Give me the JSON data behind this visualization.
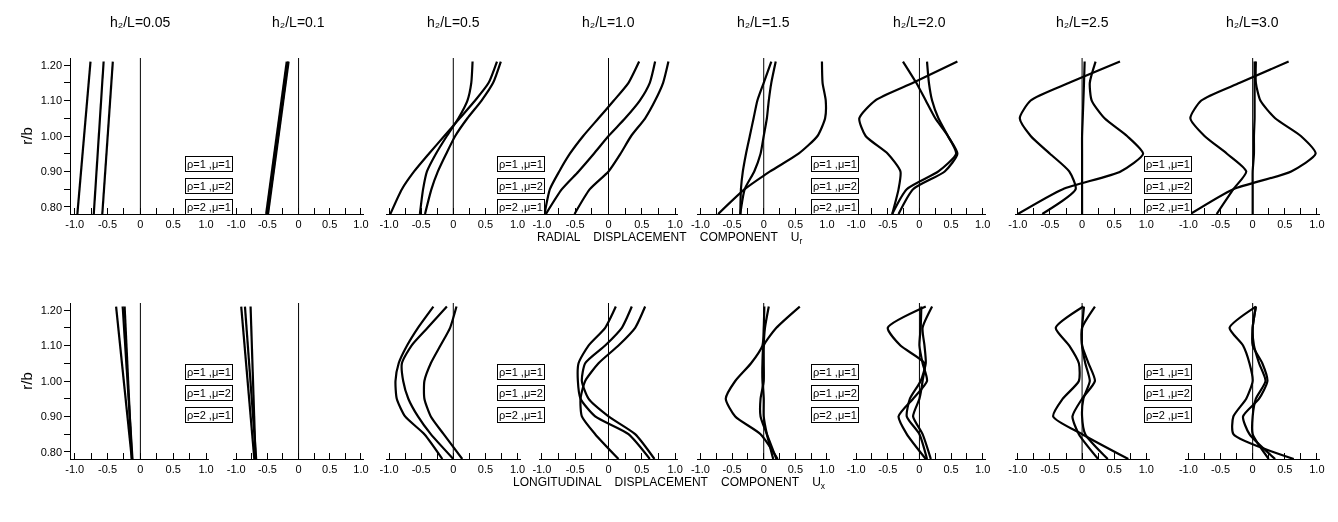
{
  "chart_data": [
    {
      "type": "line",
      "title": "h₂/L=0.05",
      "ylabel": "r/b",
      "xlim": [
        -1.05,
        1.05
      ],
      "ylim": [
        0.78,
        1.22
      ],
      "xticks": [
        {
          "value": -1,
          "label": "-1.0"
        },
        {
          "value": -0.75,
          "label": null
        },
        {
          "value": -0.5,
          "label": "-0.5"
        },
        {
          "value": -0.25,
          "label": null
        },
        0,
        {
          "value": 0.25,
          "label": null
        },
        {
          "value": 0.5,
          "label": "0.5"
        },
        {
          "value": 0.75,
          "label": null
        },
        {
          "value": 1,
          "label": "1.0"
        }
      ],
      "yticks": [
        {
          "value": 0.8,
          "label": "0.80"
        },
        {
          "value": 0.85,
          "label": null
        },
        {
          "value": 0.9,
          "label": "0.90"
        },
        {
          "value": 0.95,
          "label": null
        },
        {
          "value": 1.0,
          "label": "1.00"
        },
        {
          "value": 1.05,
          "label": null
        },
        {
          "value": 1.1,
          "label": "1.10"
        },
        {
          "value": 1.15,
          "label": null
        },
        {
          "value": 1.2,
          "label": "1.20"
        }
      ],
      "ref_lines": [
        {
          "axis": "x",
          "value": 0,
          "color": "#000000"
        }
      ],
      "annotations": [
        "ρ=1 ,μ=1",
        "ρ=1 ,μ=2",
        "ρ=2 ,μ=1"
      ],
      "series": [
        {
          "color": "#000000",
          "x": [
            -0.96,
            -0.76
          ],
          "values": [
            0.78,
            1.21
          ]
        },
        {
          "color": "#000000",
          "x": [
            -0.71,
            -0.56
          ],
          "values": [
            0.78,
            1.21
          ]
        },
        {
          "color": "#000000",
          "x": [
            -0.58,
            -0.42
          ],
          "values": [
            0.78,
            1.21
          ]
        }
      ]
    },
    {
      "type": "line",
      "title": "h₂/L=0.1",
      "tick_labels": "x",
      "xlim": [
        -1.05,
        1.05
      ],
      "ylim": [
        0.78,
        1.22
      ],
      "xticks": [
        {
          "value": -1,
          "label": "-1.0"
        },
        {
          "value": -0.75,
          "label": null
        },
        {
          "value": -0.5,
          "label": "-0.5"
        },
        {
          "value": -0.25,
          "label": null
        },
        0,
        {
          "value": 0.25,
          "label": null
        },
        {
          "value": 0.5,
          "label": "0.5"
        },
        {
          "value": 0.75,
          "label": null
        },
        {
          "value": 1,
          "label": "1.0"
        }
      ],
      "ref_lines": [
        {
          "axis": "x",
          "value": 0,
          "color": "#000000"
        }
      ],
      "annotations": [
        "RADIAL    DISPLACEMENT    COMPONENT    U$_{r}$"
      ],
      "series": [
        {
          "color": "#000000",
          "x": [
            -0.52,
            -0.19
          ],
          "values": [
            0.78,
            1.21
          ]
        },
        {
          "color": "#000000",
          "x": [
            -0.5,
            -0.17
          ],
          "values": [
            0.78,
            1.21
          ]
        },
        {
          "color": "#000000",
          "x": [
            -0.49,
            -0.16
          ],
          "values": [
            0.78,
            1.21
          ]
        }
      ]
    },
    {
      "type": "line",
      "title": "h₂/L=0.5",
      "tick_labels": "x",
      "xlim": [
        -1.05,
        1.05
      ],
      "ylim": [
        0.78,
        1.22
      ],
      "xticks": [
        {
          "value": -1,
          "label": "-1.0"
        },
        {
          "value": -0.75,
          "label": null
        },
        {
          "value": -0.5,
          "label": "-0.5"
        },
        {
          "value": -0.25,
          "label": null
        },
        0,
        {
          "value": 0.25,
          "label": null
        },
        {
          "value": 0.5,
          "label": "0.5"
        },
        {
          "value": 0.75,
          "label": null
        },
        {
          "value": 1,
          "label": "1.0"
        }
      ],
      "ref_lines": [
        {
          "axis": "x",
          "value": 0,
          "color": "#000000"
        }
      ],
      "annotations": [
        "ρ=1 ,μ=1",
        "ρ=1 ,μ=2",
        "ρ=2 ,μ=1"
      ],
      "series": [
        {
          "color": "#000000",
          "x": [
            -0.98,
            -0.8,
            -0.61,
            -0.38,
            -0.14,
            0.1,
            0.34,
            0.55,
            0.68
          ],
          "values": [
            0.78,
            0.85,
            0.9,
            0.95,
            1.0,
            1.05,
            1.1,
            1.15,
            1.21
          ]
        },
        {
          "color": "#000000",
          "x": [
            -0.52,
            -0.47,
            -0.41,
            -0.27,
            -0.1,
            0.08,
            0.22,
            0.28,
            0.3
          ],
          "values": [
            0.78,
            0.85,
            0.9,
            0.95,
            1.0,
            1.05,
            1.1,
            1.15,
            1.21
          ]
        },
        {
          "color": "#000000",
          "x": [
            -0.44,
            -0.34,
            -0.24,
            -0.11,
            0.03,
            0.22,
            0.44,
            0.62,
            0.74
          ],
          "values": [
            0.78,
            0.85,
            0.9,
            0.95,
            1.0,
            1.05,
            1.1,
            1.15,
            1.21
          ]
        }
      ]
    },
    {
      "type": "line",
      "title": "h₂/L=1.0",
      "tick_labels": "x",
      "xlim": [
        -1.05,
        1.05
      ],
      "ylim": [
        0.78,
        1.22
      ],
      "xticks": [
        {
          "value": -1,
          "label": "-1.0"
        },
        {
          "value": -0.75,
          "label": null
        },
        {
          "value": -0.5,
          "label": "-0.5"
        },
        {
          "value": -0.25,
          "label": null
        },
        0,
        {
          "value": 0.25,
          "label": null
        },
        {
          "value": 0.5,
          "label": "0.5"
        },
        {
          "value": 0.75,
          "label": null
        },
        {
          "value": 1,
          "label": "1.0"
        }
      ],
      "ref_lines": [
        {
          "axis": "x",
          "value": 0,
          "color": "#000000"
        }
      ],
      "series": [
        {
          "color": "#000000",
          "x": [
            -0.96,
            -0.88,
            -0.74,
            -0.58,
            -0.38,
            -0.15,
            0.08,
            0.3,
            0.46
          ],
          "values": [
            0.78,
            0.85,
            0.9,
            0.95,
            1.0,
            1.05,
            1.1,
            1.15,
            1.21
          ]
        },
        {
          "color": "#000000",
          "x": [
            -0.94,
            -0.7,
            -0.45,
            -0.22,
            0.0,
            0.25,
            0.47,
            0.62,
            0.7
          ],
          "values": [
            0.78,
            0.85,
            0.9,
            0.95,
            1.0,
            1.05,
            1.1,
            1.15,
            1.21
          ]
        },
        {
          "color": "#000000",
          "x": [
            -0.51,
            -0.28,
            0.0,
            0.18,
            0.34,
            0.55,
            0.7,
            0.82,
            0.9
          ],
          "values": [
            0.78,
            0.85,
            0.9,
            0.95,
            1.0,
            1.05,
            1.1,
            1.15,
            1.21
          ]
        }
      ]
    },
    {
      "type": "line",
      "title": "h₂/L=1.5",
      "tick_labels": "x",
      "xlim": [
        -1.05,
        1.05
      ],
      "ylim": [
        0.78,
        1.22
      ],
      "xticks": [
        {
          "value": -1,
          "label": "-1.0"
        },
        {
          "value": -0.75,
          "label": null
        },
        {
          "value": -0.5,
          "label": "-0.5"
        },
        {
          "value": -0.25,
          "label": null
        },
        0,
        {
          "value": 0.25,
          "label": null
        },
        {
          "value": 0.5,
          "label": "0.5"
        },
        {
          "value": 0.75,
          "label": null
        },
        {
          "value": 1,
          "label": "1.0"
        }
      ],
      "ref_lines": [
        {
          "axis": "x",
          "value": 0,
          "color": "#000000"
        }
      ],
      "annotations": [
        "ρ=1 ,μ=1",
        "ρ=1 ,μ=2",
        "ρ=2 ,μ=1"
      ],
      "series": [
        {
          "color": "#000000",
          "x": [
            -0.37,
            -0.3,
            -0.15,
            -0.05,
            0.0,
            0.05,
            0.08,
            0.12,
            0.19
          ],
          "values": [
            0.78,
            0.85,
            0.9,
            0.95,
            1.0,
            1.05,
            1.1,
            1.15,
            1.21
          ]
        },
        {
          "color": "#000000",
          "x": [
            -0.37,
            -0.36,
            -0.33,
            -0.28,
            -0.22,
            -0.16,
            -0.1,
            0.0,
            0.12
          ],
          "values": [
            0.78,
            0.85,
            0.9,
            0.95,
            1.0,
            1.05,
            1.1,
            1.15,
            1.21
          ]
        },
        {
          "color": "#000000",
          "x": [
            -0.72,
            -0.3,
            0.1,
            0.55,
            0.85,
            0.97,
            0.98,
            0.93,
            0.92
          ],
          "values": [
            0.78,
            0.85,
            0.9,
            0.95,
            1.0,
            1.05,
            1.1,
            1.15,
            1.21
          ]
        }
      ]
    },
    {
      "type": "line",
      "title": "h₂/L=2.0",
      "tick_labels": "x",
      "xlim": [
        -1.05,
        1.05
      ],
      "ylim": [
        0.78,
        1.22
      ],
      "xticks": [
        {
          "value": -1,
          "label": "-1.0"
        },
        {
          "value": -0.75,
          "label": null
        },
        {
          "value": -0.5,
          "label": "-0.5"
        },
        {
          "value": -0.25,
          "label": null
        },
        0,
        {
          "value": 0.25,
          "label": null
        },
        {
          "value": 0.5,
          "label": "0.5"
        },
        {
          "value": 0.75,
          "label": null
        },
        {
          "value": 1,
          "label": "1.0"
        }
      ],
      "ref_lines": [
        {
          "axis": "x",
          "value": 0,
          "color": "#000000"
        }
      ],
      "series": [
        {
          "color": "#000000",
          "x": [
            -0.43,
            -0.33,
            -0.3,
            -0.5,
            -0.85,
            -0.95,
            -0.7,
            -0.1,
            0.6
          ],
          "values": [
            0.78,
            0.85,
            0.9,
            0.95,
            1.0,
            1.05,
            1.1,
            1.15,
            1.21
          ]
        },
        {
          "color": "#000000",
          "x": [
            -0.43,
            -0.2,
            0.3,
            0.58,
            0.45,
            0.25,
            0.1,
            -0.05,
            -0.26
          ],
          "values": [
            0.78,
            0.85,
            0.9,
            0.95,
            1.0,
            1.05,
            1.1,
            1.15,
            1.21
          ]
        },
        {
          "color": "#000000",
          "x": [
            -0.33,
            -0.1,
            0.4,
            0.6,
            0.45,
            0.3,
            0.2,
            0.15,
            0.12
          ],
          "values": [
            0.78,
            0.85,
            0.9,
            0.95,
            1.0,
            1.05,
            1.1,
            1.15,
            1.21
          ]
        }
      ]
    },
    {
      "type": "line",
      "title": "h₂/L=2.5",
      "tick_labels": "x",
      "xlim": [
        -1.05,
        1.05
      ],
      "ylim": [
        0.78,
        1.22
      ],
      "xticks": [
        {
          "value": -1,
          "label": "-1.0"
        },
        {
          "value": -0.75,
          "label": null
        },
        {
          "value": -0.5,
          "label": "-0.5"
        },
        {
          "value": -0.25,
          "label": null
        },
        0,
        {
          "value": 0.25,
          "label": null
        },
        {
          "value": 0.5,
          "label": "0.5"
        },
        {
          "value": 0.75,
          "label": null
        },
        {
          "value": 1,
          "label": "1.0"
        }
      ],
      "ref_lines": [
        {
          "axis": "x",
          "value": 0,
          "color": "#000000"
        }
      ],
      "annotations": [
        "ρ=1 ,μ=1",
        "ρ=1 ,μ=2",
        "ρ=2 ,μ=1"
      ],
      "series": [
        {
          "color": "#000000",
          "x": [
            -0.62,
            -0.1,
            -0.2,
            -0.5,
            -0.8,
            -0.97,
            -0.8,
            -0.2,
            0.59
          ],
          "values": [
            0.78,
            0.85,
            0.9,
            0.95,
            1.0,
            1.05,
            1.1,
            1.15,
            1.21
          ]
        },
        {
          "color": "#000000",
          "x": [
            -1.0,
            -0.3,
            0.6,
            0.95,
            0.7,
            0.35,
            0.15,
            0.12,
            0.21
          ],
          "values": [
            0.78,
            0.85,
            0.9,
            0.95,
            1.0,
            1.05,
            1.1,
            1.15,
            1.21
          ]
        },
        {
          "color": "#000000",
          "x": [
            0.0,
            0.0,
            0.0,
            0.0,
            0.0,
            0.01,
            0.02,
            0.03,
            0.04
          ],
          "values": [
            0.78,
            0.85,
            0.9,
            0.95,
            1.0,
            1.05,
            1.1,
            1.15,
            1.21
          ]
        }
      ]
    },
    {
      "type": "line",
      "title": "h₂/L=3.0",
      "tick_labels": "x",
      "xlim": [
        -1.05,
        1.05
      ],
      "ylim": [
        0.78,
        1.22
      ],
      "xticks": [
        {
          "value": -1,
          "label": "-1.0"
        },
        {
          "value": -0.75,
          "label": null
        },
        {
          "value": -0.5,
          "label": "-0.5"
        },
        {
          "value": -0.25,
          "label": null
        },
        0,
        {
          "value": 0.25,
          "label": null
        },
        {
          "value": 0.5,
          "label": "0.5"
        },
        {
          "value": 0.75,
          "label": null
        },
        {
          "value": 1,
          "label": "1.0"
        }
      ],
      "ref_lines": [
        {
          "axis": "x",
          "value": 0,
          "color": "#000000"
        }
      ],
      "series": [
        {
          "color": "#000000",
          "x": [
            -0.56,
            -0.3,
            -0.1,
            -0.4,
            -0.75,
            -0.97,
            -0.8,
            -0.2,
            0.56
          ],
          "values": [
            0.78,
            0.85,
            0.9,
            0.95,
            1.0,
            1.05,
            1.1,
            1.15,
            1.21
          ]
        },
        {
          "color": "#000000",
          "x": [
            -0.97,
            -0.3,
            0.6,
            0.98,
            0.75,
            0.35,
            0.12,
            0.05,
            0.05
          ],
          "values": [
            0.78,
            0.85,
            0.9,
            0.95,
            1.0,
            1.05,
            1.1,
            1.15,
            1.21
          ]
        },
        {
          "color": "#000000",
          "x": [
            0.0,
            0.0,
            0.0,
            0.02,
            0.02,
            0.03,
            0.03,
            0.03,
            0.03
          ],
          "values": [
            0.78,
            0.85,
            0.9,
            0.95,
            1.0,
            1.05,
            1.1,
            1.15,
            1.21
          ]
        }
      ]
    },
    {
      "type": "line",
      "ylabel": "r/b",
      "xlim": [
        -1.05,
        1.05
      ],
      "ylim": [
        0.78,
        1.22
      ],
      "xticks": [
        {
          "value": -1,
          "label": "-1.0"
        },
        {
          "value": -0.75,
          "label": null
        },
        {
          "value": -0.5,
          "label": "-0.5"
        },
        {
          "value": -0.25,
          "label": null
        },
        0,
        {
          "value": 0.25,
          "label": null
        },
        {
          "value": 0.5,
          "label": "0.5"
        },
        {
          "value": 0.75,
          "label": null
        },
        {
          "value": 1,
          "label": "1.0"
        }
      ],
      "yticks": [
        {
          "value": 0.8,
          "label": "0.80"
        },
        {
          "value": 0.85,
          "label": null
        },
        {
          "value": 0.9,
          "label": "0.90"
        },
        {
          "value": 0.95,
          "label": null
        },
        {
          "value": 1.0,
          "label": "1.00"
        },
        {
          "value": 1.05,
          "label": null
        },
        {
          "value": 1.1,
          "label": "1.10"
        },
        {
          "value": 1.15,
          "label": null
        },
        {
          "value": 1.2,
          "label": "1.20"
        }
      ],
      "ref_lines": [
        {
          "axis": "x",
          "value": 0,
          "color": "#000000"
        }
      ],
      "annotations": [
        "ρ=1 ,μ=1",
        "ρ=1 ,μ=2",
        "ρ=2 ,μ=1"
      ],
      "series": [
        {
          "color": "#000000",
          "x": [
            -0.13,
            -0.37
          ],
          "values": [
            0.78,
            1.21
          ]
        },
        {
          "color": "#000000",
          "x": [
            -0.12,
            -0.27
          ],
          "values": [
            0.78,
            1.21
          ]
        },
        {
          "color": "#000000",
          "x": [
            -0.13,
            -0.24
          ],
          "values": [
            0.78,
            1.21
          ]
        }
      ]
    },
    {
      "type": "line",
      "tick_labels": "x",
      "xlim": [
        -1.05,
        1.05
      ],
      "ylim": [
        0.78,
        1.22
      ],
      "xticks": [
        {
          "value": -1,
          "label": "-1.0"
        },
        {
          "value": -0.75,
          "label": null
        },
        {
          "value": -0.5,
          "label": "-0.5"
        },
        {
          "value": -0.25,
          "label": null
        },
        0,
        {
          "value": 0.25,
          "label": null
        },
        {
          "value": 0.5,
          "label": "0.5"
        },
        {
          "value": 0.75,
          "label": null
        },
        {
          "value": 1,
          "label": "1.0"
        }
      ],
      "ref_lines": [
        {
          "axis": "x",
          "value": 0,
          "color": "#000000"
        }
      ],
      "annotations": [
        "LONGITUDINAL    DISPLACEMENT    COMPONENT    U$_{x}$"
      ],
      "series": [
        {
          "color": "#000000",
          "x": [
            -0.71,
            -0.92
          ],
          "values": [
            0.78,
            1.21
          ]
        },
        {
          "color": "#000000",
          "x": [
            -0.68,
            -0.86
          ],
          "values": [
            0.78,
            1.21
          ]
        },
        {
          "color": "#000000",
          "x": [
            -0.69,
            -0.77
          ],
          "values": [
            0.78,
            1.21
          ]
        }
      ]
    },
    {
      "type": "line",
      "tick_labels": "x",
      "xlim": [
        -1.05,
        1.05
      ],
      "ylim": [
        0.78,
        1.22
      ],
      "xticks": [
        {
          "value": -1,
          "label": "-1.0"
        },
        {
          "value": -0.75,
          "label": null
        },
        {
          "value": -0.5,
          "label": "-0.5"
        },
        {
          "value": -0.25,
          "label": null
        },
        0,
        {
          "value": 0.25,
          "label": null
        },
        {
          "value": 0.5,
          "label": "0.5"
        },
        {
          "value": 0.75,
          "label": null
        },
        {
          "value": 1,
          "label": "1.0"
        }
      ],
      "ref_lines": [
        {
          "axis": "x",
          "value": 0,
          "color": "#000000"
        }
      ],
      "annotations": [
        "ρ=1 ,μ=1",
        "ρ=1 ,μ=2",
        "ρ=2 ,μ=1"
      ],
      "series": [
        {
          "color": "#000000",
          "x": [
            -0.17,
            -0.45,
            -0.75,
            -0.88,
            -0.9,
            -0.85,
            -0.72,
            -0.55,
            -0.31
          ],
          "values": [
            0.78,
            0.85,
            0.9,
            0.95,
            1.0,
            1.05,
            1.1,
            1.15,
            1.21
          ]
        },
        {
          "color": "#000000",
          "x": [
            0.0,
            -0.35,
            -0.55,
            -0.7,
            -0.78,
            -0.8,
            -0.65,
            -0.4,
            -0.1
          ],
          "values": [
            0.78,
            0.85,
            0.9,
            0.95,
            1.0,
            1.05,
            1.1,
            1.15,
            1.21
          ]
        },
        {
          "color": "#000000",
          "x": [
            0.14,
            -0.15,
            -0.35,
            -0.45,
            -0.45,
            -0.35,
            -0.2,
            -0.05,
            0.05
          ],
          "values": [
            0.78,
            0.85,
            0.9,
            0.95,
            1.0,
            1.05,
            1.1,
            1.15,
            1.21
          ]
        }
      ]
    },
    {
      "type": "line",
      "tick_labels": "x",
      "xlim": [
        -1.05,
        1.05
      ],
      "ylim": [
        0.78,
        1.22
      ],
      "xticks": [
        {
          "value": -1,
          "label": "-1.0"
        },
        {
          "value": -0.75,
          "label": null
        },
        {
          "value": -0.5,
          "label": "-0.5"
        },
        {
          "value": -0.25,
          "label": null
        },
        0,
        {
          "value": 0.25,
          "label": null
        },
        {
          "value": 0.5,
          "label": "0.5"
        },
        {
          "value": 0.75,
          "label": null
        },
        {
          "value": 1,
          "label": "1.0"
        }
      ],
      "ref_lines": [
        {
          "axis": "x",
          "value": 0,
          "color": "#000000"
        }
      ],
      "series": [
        {
          "color": "#000000",
          "x": [
            0.62,
            0.3,
            -0.2,
            -0.42,
            -0.46,
            -0.45,
            -0.3,
            -0.05,
            0.11
          ],
          "values": [
            0.78,
            0.85,
            0.9,
            0.95,
            1.0,
            1.05,
            1.1,
            1.15,
            1.21
          ]
        },
        {
          "color": "#000000",
          "x": [
            0.69,
            0.4,
            0.0,
            -0.3,
            -0.4,
            -0.35,
            -0.05,
            0.2,
            0.35
          ],
          "values": [
            0.78,
            0.85,
            0.9,
            0.95,
            1.0,
            1.05,
            1.1,
            1.15,
            1.21
          ]
        },
        {
          "color": "#000000",
          "x": [
            0.15,
            -0.2,
            -0.4,
            -0.42,
            -0.35,
            -0.15,
            0.15,
            0.4,
            0.55
          ],
          "values": [
            0.78,
            0.85,
            0.9,
            0.95,
            1.0,
            1.05,
            1.1,
            1.15,
            1.21
          ]
        }
      ]
    },
    {
      "type": "line",
      "tick_labels": "x",
      "xlim": [
        -1.05,
        1.05
      ],
      "ylim": [
        0.78,
        1.22
      ],
      "xticks": [
        {
          "value": -1,
          "label": "-1.0"
        },
        {
          "value": -0.75,
          "label": null
        },
        {
          "value": -0.5,
          "label": "-0.5"
        },
        {
          "value": -0.25,
          "label": null
        },
        0,
        {
          "value": 0.25,
          "label": null
        },
        {
          "value": 0.5,
          "label": "0.5"
        },
        {
          "value": 0.75,
          "label": null
        },
        {
          "value": 1,
          "label": "1.0"
        }
      ],
      "ref_lines": [
        {
          "axis": "x",
          "value": 0,
          "color": "#000000"
        }
      ],
      "annotations": [
        "ρ=1 ,μ=1",
        "ρ=1 ,μ=2",
        "ρ=2 ,μ=1"
      ],
      "series": [
        {
          "color": "#000000",
          "x": [
            0.22,
            -0.05,
            -0.45,
            -0.6,
            -0.45,
            -0.2,
            -0.02,
            0.0,
            0.01
          ],
          "values": [
            0.78,
            0.85,
            0.9,
            0.95,
            1.0,
            1.05,
            1.1,
            1.15,
            1.21
          ]
        },
        {
          "color": "#000000",
          "x": [
            0.2,
            0.05,
            -0.05,
            -0.05,
            0.0,
            0.0,
            0.0,
            0.02,
            0.08
          ],
          "values": [
            0.78,
            0.85,
            0.9,
            0.95,
            1.0,
            1.05,
            1.1,
            1.15,
            1.21
          ]
        },
        {
          "color": "#000000",
          "x": [
            0.15,
            0.05,
            0.0,
            0.0,
            -0.02,
            -0.02,
            0.0,
            0.2,
            0.57
          ],
          "values": [
            0.78,
            0.85,
            0.9,
            0.95,
            1.0,
            1.05,
            1.1,
            1.15,
            1.21
          ]
        }
      ]
    },
    {
      "type": "line",
      "tick_labels": "x",
      "xlim": [
        -1.05,
        1.05
      ],
      "ylim": [
        0.78,
        1.22
      ],
      "xticks": [
        {
          "value": -1,
          "label": "-1.0"
        },
        {
          "value": -0.75,
          "label": null
        },
        {
          "value": -0.5,
          "label": "-0.5"
        },
        {
          "value": -0.25,
          "label": null
        },
        0,
        {
          "value": 0.25,
          "label": null
        },
        {
          "value": 0.5,
          "label": "0.5"
        },
        {
          "value": 0.75,
          "label": null
        },
        {
          "value": 1,
          "label": "1.0"
        }
      ],
      "ref_lines": [
        {
          "axis": "x",
          "value": 0,
          "color": "#000000"
        }
      ],
      "series": [
        {
          "color": "#000000",
          "x": [
            0.18,
            0.05,
            -0.1,
            0.0,
            0.05,
            0.08,
            -0.3,
            -0.5,
            0.1
          ],
          "values": [
            0.78,
            0.85,
            0.9,
            0.95,
            1.0,
            1.05,
            1.1,
            1.15,
            1.21
          ]
        },
        {
          "color": "#000000",
          "x": [
            0.1,
            -0.2,
            -0.33,
            -0.1,
            0.12,
            0.05,
            0.0,
            0.02,
            0.03
          ],
          "values": [
            0.78,
            0.85,
            0.9,
            0.95,
            1.0,
            1.05,
            1.1,
            1.15,
            1.21
          ]
        },
        {
          "color": "#000000",
          "x": [
            0.12,
            0.0,
            -0.2,
            -0.15,
            0.02,
            0.1,
            0.08,
            0.05,
            0.2
          ],
          "values": [
            0.78,
            0.85,
            0.9,
            0.95,
            1.0,
            1.05,
            1.1,
            1.15,
            1.21
          ]
        }
      ]
    },
    {
      "type": "line",
      "tick_labels": "x",
      "xlim": [
        -1.05,
        1.05
      ],
      "ylim": [
        0.78,
        1.22
      ],
      "xticks": [
        {
          "value": -1,
          "label": "-1.0"
        },
        {
          "value": -0.75,
          "label": null
        },
        {
          "value": -0.5,
          "label": "-0.5"
        },
        {
          "value": -0.25,
          "label": null
        },
        0,
        {
          "value": 0.25,
          "label": null
        },
        {
          "value": 0.5,
          "label": "0.5"
        },
        {
          "value": 0.75,
          "label": null
        },
        {
          "value": 1,
          "label": "1.0"
        }
      ],
      "ref_lines": [
        {
          "axis": "x",
          "value": 0,
          "color": "#000000"
        }
      ],
      "annotations": [
        "ρ=1 ,μ=1",
        "ρ=1 ,μ=2",
        "ρ=2 ,μ=1"
      ],
      "series": [
        {
          "color": "#000000",
          "x": [
            0.72,
            0.0,
            -0.45,
            -0.3,
            -0.05,
            -0.05,
            -0.2,
            -0.41,
            0.02
          ],
          "values": [
            0.78,
            0.85,
            0.9,
            0.95,
            1.0,
            1.05,
            1.1,
            1.15,
            1.21
          ]
        },
        {
          "color": "#000000",
          "x": [
            0.25,
            -0.05,
            -0.15,
            0.0,
            0.2,
            0.1,
            0.0,
            0.0,
            0.03
          ],
          "values": [
            0.78,
            0.85,
            0.9,
            0.95,
            1.0,
            1.05,
            1.1,
            1.15,
            1.21
          ]
        },
        {
          "color": "#000000",
          "x": [
            0.4,
            0.05,
            0.0,
            0.02,
            0.12,
            0.05,
            0.0,
            0.0,
            0.2
          ],
          "values": [
            0.78,
            0.85,
            0.9,
            0.95,
            1.0,
            1.05,
            1.1,
            1.15,
            1.21
          ]
        }
      ]
    },
    {
      "type": "line",
      "tick_labels": "x",
      "xlim": [
        -1.05,
        1.05
      ],
      "ylim": [
        0.78,
        1.22
      ],
      "xticks": [
        {
          "value": -1,
          "label": "-1.0"
        },
        {
          "value": -0.75,
          "label": null
        },
        {
          "value": -0.5,
          "label": "-0.5"
        },
        {
          "value": -0.25,
          "label": null
        },
        0,
        {
          "value": 0.25,
          "label": null
        },
        {
          "value": 0.5,
          "label": "0.5"
        },
        {
          "value": 0.75,
          "label": null
        },
        {
          "value": 1,
          "label": "1.0"
        }
      ],
      "ref_lines": [
        {
          "axis": "x",
          "value": 0,
          "color": "#000000"
        }
      ],
      "series": [
        {
          "color": "#000000",
          "x": [
            0.64,
            -0.3,
            -0.3,
            -0.1,
            0.0,
            -0.05,
            -0.15,
            -0.36,
            0.05
          ],
          "values": [
            0.78,
            0.85,
            0.9,
            0.95,
            1.0,
            1.05,
            1.1,
            1.15,
            1.21
          ]
        },
        {
          "color": "#000000",
          "x": [
            0.35,
            -0.05,
            -0.15,
            0.1,
            0.23,
            0.15,
            0.0,
            0.0,
            0.05
          ],
          "values": [
            0.78,
            0.85,
            0.9,
            0.95,
            1.0,
            1.05,
            1.1,
            1.15,
            1.21
          ]
        },
        {
          "color": "#000000",
          "x": [
            0.25,
            0.0,
            0.0,
            0.05,
            0.2,
            0.1,
            0.02,
            0.0,
            0.05
          ],
          "values": [
            0.78,
            0.85,
            0.9,
            0.95,
            1.0,
            1.05,
            1.1,
            1.15,
            1.21
          ]
        }
      ]
    }
  ]
}
